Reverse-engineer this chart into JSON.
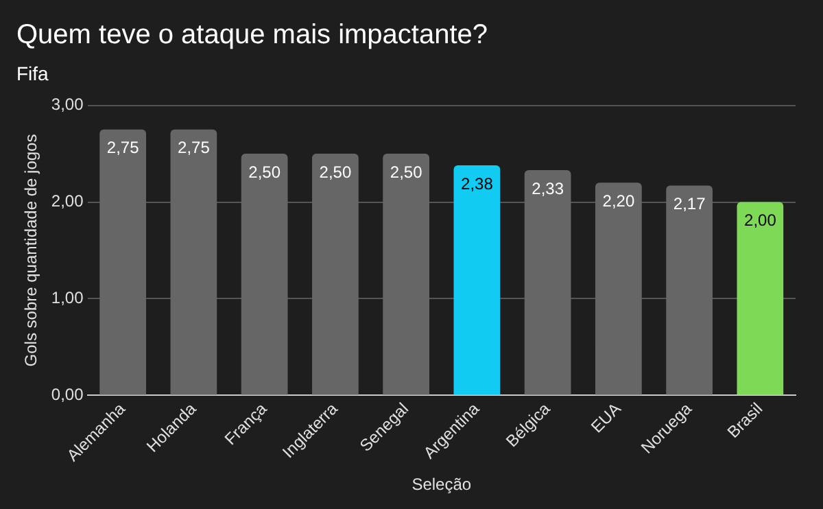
{
  "chart_data": {
    "type": "bar",
    "title": "Quem teve o ataque mais impactante?",
    "subtitle": "Fifa",
    "xlabel": "Seleção",
    "ylabel": "Gols sobre quantidade de jogos",
    "categories": [
      "Alemanha",
      "Holanda",
      "França",
      "Inglaterra",
      "Senegal",
      "Argentina",
      "Bélgica",
      "EUA",
      "Noruega",
      "Brasil"
    ],
    "values": [
      2.75,
      2.75,
      2.5,
      2.5,
      2.5,
      2.38,
      2.33,
      2.2,
      2.17,
      2.0
    ],
    "value_labels": [
      "2,75",
      "2,75",
      "2,50",
      "2,50",
      "2,50",
      "2,38",
      "2,33",
      "2,20",
      "2,17",
      "2,00"
    ],
    "colors": [
      "#666666",
      "#666666",
      "#666666",
      "#666666",
      "#666666",
      "#11cbf3",
      "#666666",
      "#666666",
      "#666666",
      "#7ed957"
    ],
    "ylim": [
      0,
      3
    ],
    "yticks": [
      {
        "value": 0,
        "label": "0,00"
      },
      {
        "value": 1,
        "label": "1,00"
      },
      {
        "value": 2,
        "label": "2,00"
      },
      {
        "value": 3,
        "label": "3,00"
      }
    ],
    "grid": "y",
    "legend": false
  }
}
